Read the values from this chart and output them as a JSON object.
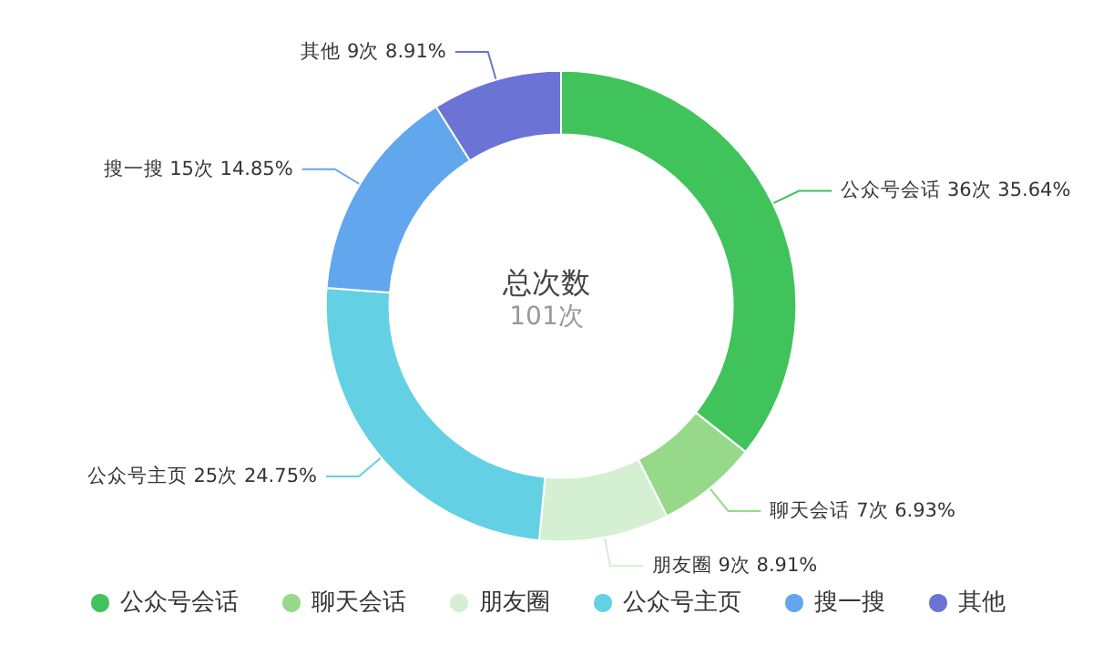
{
  "chart_data": {
    "type": "donut",
    "title": "总次数",
    "subtitle": "101次",
    "categories": [
      "公众号会话",
      "聊天会话",
      "朋友圈",
      "公众号主页",
      "搜一搜",
      "其他"
    ],
    "values": [
      36,
      7,
      9,
      25,
      15,
      9
    ],
    "value_labels": [
      "36次 35.64%",
      "7次 6.93%",
      "9次 8.91%",
      "25次 24.75%",
      "15次 14.85%",
      "9次 8.91%"
    ],
    "colors": [
      "#40c35b",
      "#96d98b",
      "#d4efd1",
      "#63d0e4",
      "#62a6ee",
      "#6b73d4"
    ],
    "legend": "bottom"
  }
}
